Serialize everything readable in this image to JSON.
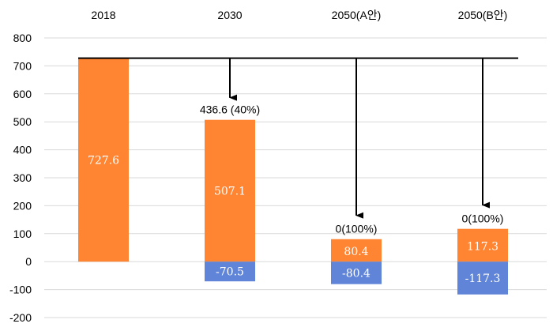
{
  "chart_data": {
    "type": "bar",
    "categories": [
      "2018",
      "2030",
      "2050(A안)",
      "2050(B안)"
    ],
    "series": [
      {
        "values": [
          727.6,
          507.1,
          80.4,
          117.3
        ],
        "labels": [
          "727.6",
          "507.1",
          "80.4",
          "117.3"
        ]
      },
      {
        "values": [
          0,
          -70.5,
          -80.4,
          -117.3
        ],
        "labels": [
          "",
          "-70.5",
          "-80.4",
          "-117.3"
        ]
      }
    ],
    "annotations": [
      "",
      "436.6  (40%)",
      "0(100%)",
      "0(100%)"
    ],
    "baseline": 727.6,
    "ylim": [
      -200,
      800
    ],
    "yticks": [
      800,
      700,
      600,
      500,
      400,
      300,
      200,
      100,
      0,
      -100,
      -200
    ],
    "ytick_labels": [
      "800",
      "700",
      "600",
      "500",
      "400",
      "300",
      "200",
      "100",
      "0",
      "-100",
      "-200"
    ],
    "grid": true,
    "legend": "none",
    "colors": {
      "positive": "#ff8533",
      "negative": "#5f84d8",
      "grid": "#d9d9d9",
      "line": "#000000"
    }
  }
}
